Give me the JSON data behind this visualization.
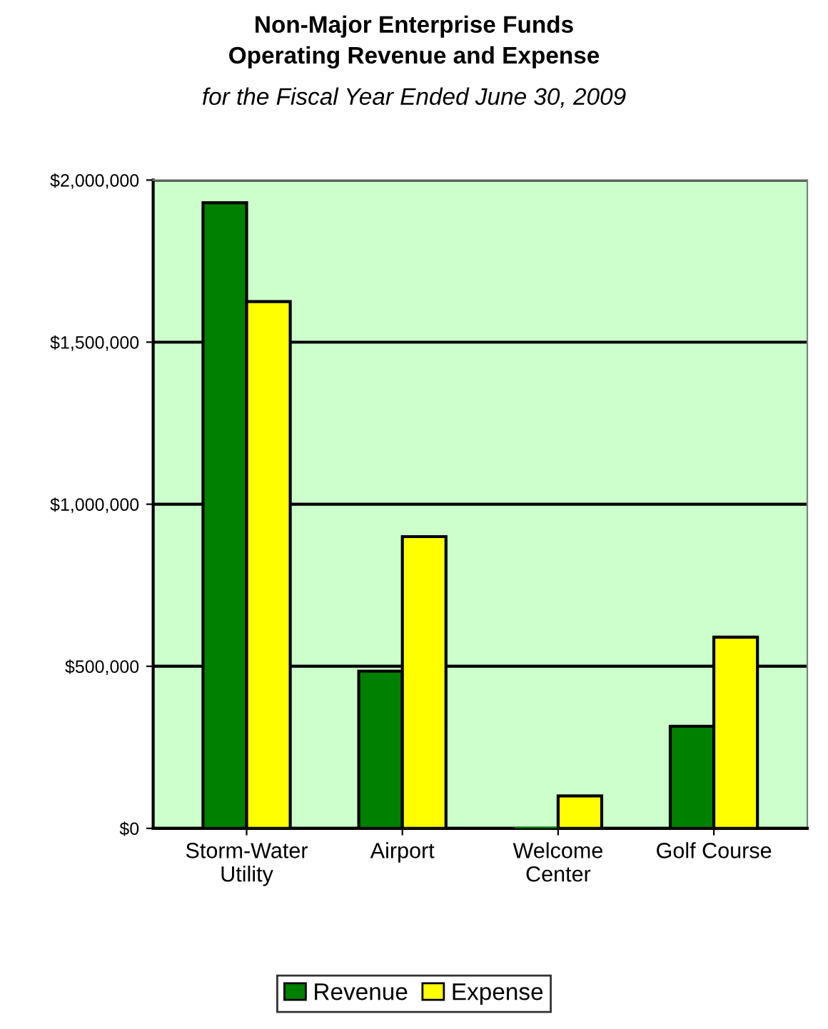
{
  "chart_data": {
    "type": "bar",
    "title": "Non-Major Enterprise Funds\nOperating Revenue and Expense",
    "subtitle": "for the Fiscal Year Ended June 30, 2009",
    "categories": [
      "Storm-Water\nUtility",
      "Airport",
      "Welcome\nCenter",
      "Golf Course"
    ],
    "series": [
      {
        "name": "Revenue",
        "color": "#008000",
        "values": [
          1930000,
          485000,
          0,
          315000
        ]
      },
      {
        "name": "Expense",
        "color": "#ffff00",
        "values": [
          1625000,
          900000,
          100000,
          590000
        ]
      }
    ],
    "ylim": [
      0,
      2000000
    ],
    "yticks": [
      {
        "value": 0,
        "label": "$0"
      },
      {
        "value": 500000,
        "label": "$500,000"
      },
      {
        "value": 1000000,
        "label": "$1,000,000"
      },
      {
        "value": 1500000,
        "label": "$1,500,000"
      },
      {
        "value": 2000000,
        "label": "$2,000,000"
      }
    ],
    "grid": "y",
    "legend": "bottom"
  }
}
